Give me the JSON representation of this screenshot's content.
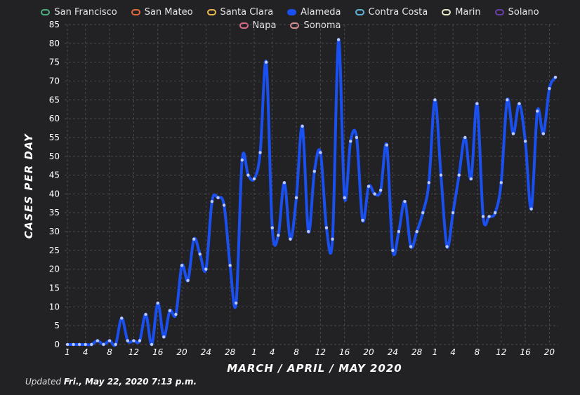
{
  "legend": [
    {
      "name": "San Francisco",
      "color": "#4caf7d",
      "active": false
    },
    {
      "name": "San Mateo",
      "color": "#e06a3b",
      "active": false
    },
    {
      "name": "Santa Clara",
      "color": "#e8b84a",
      "active": false
    },
    {
      "name": "Alameda",
      "color": "#1a4ff0",
      "active": true
    },
    {
      "name": "Contra Costa",
      "color": "#5bb3d6",
      "active": false
    },
    {
      "name": "Marin",
      "color": "#e8e8c8",
      "active": false
    },
    {
      "name": "Solano",
      "color": "#6a3fa8",
      "active": false
    },
    {
      "name": "Napa",
      "color": "#d86a86",
      "active": false
    },
    {
      "name": "Sonoma",
      "color": "#d89090",
      "active": false
    }
  ],
  "chart_data": {
    "type": "line",
    "title": "",
    "xlabel": "MARCH / APRIL / MAY 2020",
    "ylabel": "CASES PER DAY",
    "ylim": [
      0,
      85
    ],
    "yticks": [
      0,
      5,
      10,
      15,
      20,
      25,
      30,
      35,
      40,
      45,
      50,
      55,
      60,
      65,
      70,
      75,
      80,
      85
    ],
    "xticks": [
      {
        "i": 0,
        "label": "1"
      },
      {
        "i": 3,
        "label": "4"
      },
      {
        "i": 7,
        "label": "8"
      },
      {
        "i": 11,
        "label": "12"
      },
      {
        "i": 15,
        "label": "16"
      },
      {
        "i": 19,
        "label": "20"
      },
      {
        "i": 23,
        "label": "24"
      },
      {
        "i": 27,
        "label": "28"
      },
      {
        "i": 31,
        "label": "1"
      },
      {
        "i": 34,
        "label": "4"
      },
      {
        "i": 38,
        "label": "8"
      },
      {
        "i": 42,
        "label": "12"
      },
      {
        "i": 46,
        "label": "16"
      },
      {
        "i": 50,
        "label": "20"
      },
      {
        "i": 54,
        "label": "24"
      },
      {
        "i": 58,
        "label": "28"
      },
      {
        "i": 61,
        "label": "1"
      },
      {
        "i": 64,
        "label": "4"
      },
      {
        "i": 68,
        "label": "8"
      },
      {
        "i": 72,
        "label": "12"
      },
      {
        "i": 76,
        "label": "16"
      },
      {
        "i": 80,
        "label": "20"
      }
    ],
    "grid": true,
    "legend_position": "top",
    "series": [
      {
        "name": "Alameda",
        "color": "#1a4ff0",
        "values": [
          0,
          0,
          0,
          0,
          0,
          1,
          0,
          1,
          0,
          7,
          1,
          1,
          1,
          8,
          0,
          11,
          2,
          9,
          8,
          21,
          17,
          28,
          24,
          20,
          38,
          39,
          37,
          21,
          11,
          49,
          45,
          44,
          51,
          75,
          31,
          29,
          43,
          28,
          39,
          58,
          30,
          46,
          51,
          31,
          28,
          81,
          39,
          54,
          55,
          33,
          42,
          40,
          41,
          53,
          25,
          30,
          38,
          26,
          30,
          35,
          43,
          65,
          45,
          26,
          35,
          45,
          55,
          44,
          64,
          34,
          34,
          35,
          43,
          65,
          56,
          64,
          54,
          36,
          62,
          56,
          68,
          71
        ]
      }
    ]
  },
  "footer": {
    "updated_prefix": "Updated",
    "updated_value": "Fri., May 22, 2020 7:13 p.m."
  }
}
